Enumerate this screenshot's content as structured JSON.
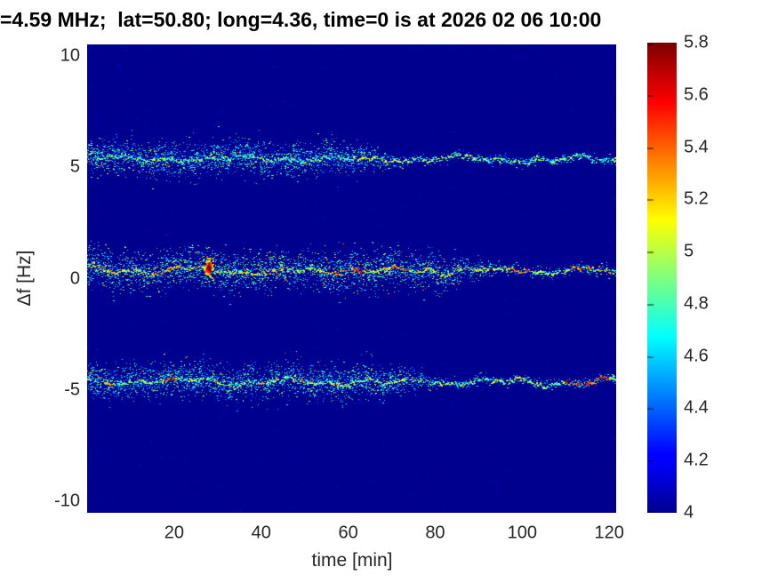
{
  "chart_data": {
    "type": "heatmap",
    "subtype": "doppler-spectrogram",
    "title": "=4.59 MHz;  lat=50.80; long=4.36, time=0 is at 2026 02 06 10:00",
    "xlabel": "time [min]",
    "ylabel": "Δf [Hz]",
    "xlim": [
      0,
      121.6
    ],
    "ylim": [
      -10.5,
      10.5
    ],
    "xticks": [
      20,
      40,
      60,
      80,
      100,
      120
    ],
    "yticks": [
      10,
      5,
      0,
      -5,
      -10
    ],
    "grid": false,
    "colormap": "jet",
    "background_value": 4.0,
    "colorbar": {
      "position": "right",
      "min": 4,
      "max": 5.8,
      "ticks": [
        4,
        4.2,
        4.4,
        4.6,
        4.8,
        5,
        5.2,
        5.4,
        5.6,
        5.8
      ]
    },
    "traces": [
      {
        "name": "upper sideband trace",
        "center_hz": 5.45,
        "slope_hz_per_min": -0.0008,
        "oscillations": [
          {
            "period_min": 27,
            "amp_hz": 0.1,
            "phase": 0.5
          },
          {
            "period_min": 9.5,
            "amp_hz": 0.06,
            "phase": 2.1
          }
        ],
        "walk_amp_hz": 0.05,
        "scatter_sigma_hz": 0.33,
        "scatter_full_until_min": 58,
        "scatter_gone_by_min": 74,
        "core_value_range": [
          4.55,
          5.1
        ],
        "scatter_value_range": [
          4.25,
          4.95
        ],
        "hot_prob": 0.08,
        "hotspots": [
          {
            "t0": 40,
            "t1": 44,
            "value": 5.0
          },
          {
            "t0": 61,
            "t1": 75,
            "value": 5.1
          },
          {
            "t0": 78,
            "t1": 88,
            "value": 5.05
          }
        ]
      },
      {
        "name": "carrier trace",
        "center_hz": 0.42,
        "slope_hz_per_min": -0.0007,
        "oscillations": [
          {
            "period_min": 23,
            "amp_hz": 0.1,
            "phase": 1.2
          },
          {
            "period_min": 8.5,
            "amp_hz": 0.06,
            "phase": 0.3
          }
        ],
        "walk_amp_hz": 0.05,
        "scatter_sigma_hz": 0.38,
        "scatter_full_until_min": 80,
        "scatter_gone_by_min": 95,
        "core_value_range": [
          4.75,
          5.35
        ],
        "scatter_value_range": [
          4.3,
          5.0
        ],
        "hot_prob": 0.15,
        "hotspots": [
          {
            "t0": 26.8,
            "t1": 28.8,
            "value": 5.8,
            "blob": true
          },
          {
            "t0": 2,
            "t1": 8,
            "value": 5.3
          },
          {
            "t0": 14,
            "t1": 20,
            "value": 5.35
          },
          {
            "t0": 57,
            "t1": 64,
            "value": 5.5
          },
          {
            "t0": 70,
            "t1": 74,
            "value": 5.45
          },
          {
            "t0": 97,
            "t1": 102,
            "value": 5.5
          },
          {
            "t0": 111,
            "t1": 116,
            "value": 5.4
          }
        ]
      },
      {
        "name": "lower sideband trace",
        "center_hz": -4.55,
        "slope_hz_per_min": -0.0008,
        "oscillations": [
          {
            "period_min": 25,
            "amp_hz": 0.11,
            "phase": 2.6
          },
          {
            "period_min": 9,
            "amp_hz": 0.06,
            "phase": 1.0
          }
        ],
        "walk_amp_hz": 0.05,
        "scatter_sigma_hz": 0.33,
        "scatter_full_until_min": 68,
        "scatter_gone_by_min": 82,
        "core_value_range": [
          4.65,
          5.2
        ],
        "scatter_value_range": [
          4.25,
          4.95
        ],
        "hot_prob": 0.1,
        "hotspots": [
          {
            "t0": 3,
            "t1": 6,
            "value": 5.4
          },
          {
            "t0": 18,
            "t1": 20,
            "value": 5.45
          },
          {
            "t0": 39,
            "t1": 41,
            "value": 5.4
          },
          {
            "t0": 98,
            "t1": 100,
            "value": 5.3
          },
          {
            "t0": 110,
            "t1": 120,
            "value": 5.55
          }
        ]
      }
    ]
  },
  "colors": {
    "figure_background": "#ffffff",
    "plot_background": "#0a0a8f",
    "axis_text": "#262626",
    "title_text": "#000000"
  }
}
